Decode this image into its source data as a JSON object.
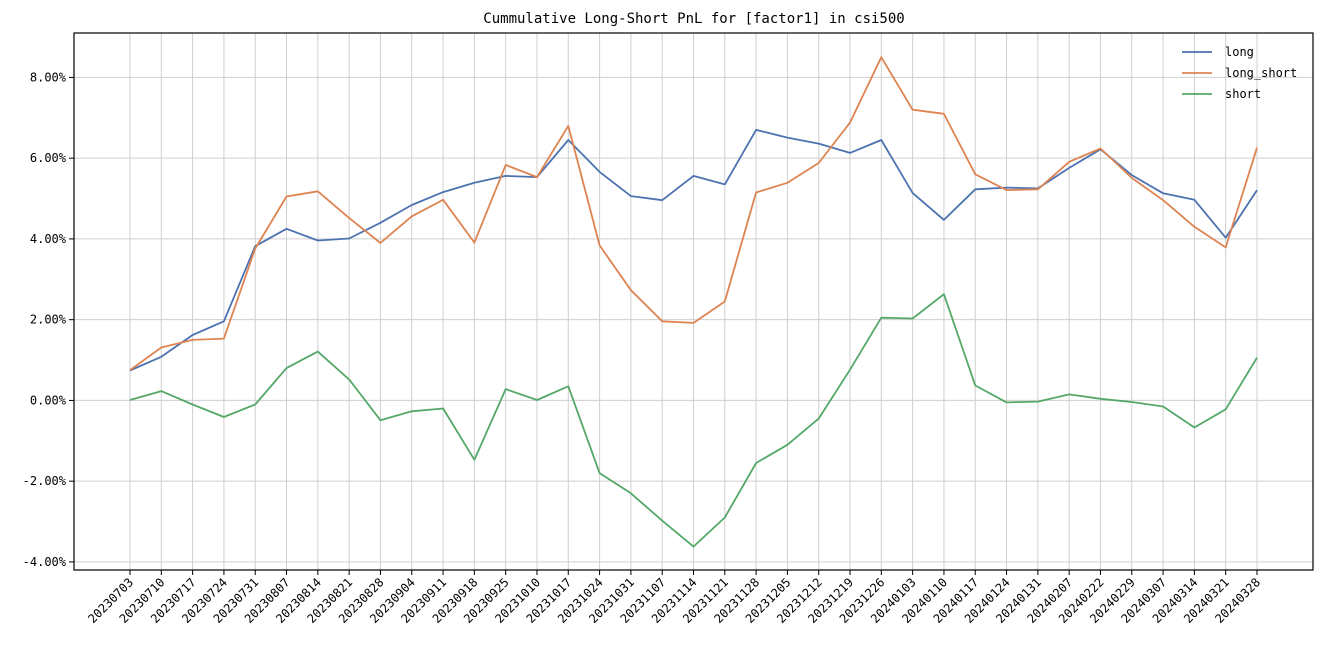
{
  "chart_data": {
    "type": "line",
    "title": "Cummulative Long-Short PnL for [factor1] in csi500",
    "xlabel": "",
    "ylabel": "",
    "ylim": [
      -4.2,
      9.1
    ],
    "yticks": [
      -4,
      -2,
      0,
      2,
      4,
      6,
      8
    ],
    "ytick_labels": [
      "-4.00%",
      "-2.00%",
      "0.00%",
      "2.00%",
      "4.00%",
      "6.00%",
      "8.00%"
    ],
    "grid": true,
    "legend_position": "top-right",
    "categories": [
      "20230703",
      "20230710",
      "20230717",
      "20230724",
      "20230731",
      "20230807",
      "20230814",
      "20230821",
      "20230828",
      "20230904",
      "20230911",
      "20230918",
      "20230925",
      "20231010",
      "20231017",
      "20231024",
      "20231031",
      "20231107",
      "20231114",
      "20231121",
      "20231128",
      "20231205",
      "20231212",
      "20231219",
      "20231226",
      "20240103",
      "20240110",
      "20240117",
      "20240124",
      "20240131",
      "20240207",
      "20240222",
      "20240229",
      "20240307",
      "20240314",
      "20240321",
      "20240328"
    ],
    "series": [
      {
        "name": "long",
        "color": "#4c72b0",
        "values": [
          0.74,
          1.08,
          1.62,
          1.96,
          3.82,
          4.25,
          3.96,
          4.01,
          4.4,
          4.84,
          5.16,
          5.39,
          5.56,
          5.53,
          6.45,
          5.66,
          5.06,
          4.96,
          5.56,
          5.35,
          6.7,
          6.51,
          6.36,
          6.13,
          6.45,
          5.14,
          4.47,
          5.23,
          5.27,
          5.25,
          5.76,
          6.22,
          5.58,
          5.13,
          4.97,
          4.03,
          5.21
        ]
      },
      {
        "name": "long_short",
        "color": "#dd8452",
        "values": [
          0.75,
          1.31,
          1.5,
          1.53,
          3.76,
          5.05,
          5.18,
          4.52,
          3.9,
          4.56,
          4.97,
          3.91,
          5.83,
          5.53,
          6.8,
          3.84,
          2.73,
          1.96,
          1.92,
          2.45,
          5.15,
          5.39,
          5.88,
          6.88,
          8.5,
          7.2,
          7.1,
          5.6,
          5.21,
          5.23,
          5.91,
          6.24,
          5.51,
          4.96,
          4.3,
          3.79,
          6.26
        ]
      },
      {
        "name": "short",
        "color": "#55a868",
        "values": [
          0.01,
          0.23,
          -0.1,
          -0.41,
          -0.1,
          0.8,
          1.21,
          0.52,
          -0.49,
          -0.27,
          -0.2,
          -1.47,
          0.28,
          0.01,
          0.35,
          -1.8,
          -2.3,
          -2.98,
          -3.62,
          -2.9,
          -1.55,
          -1.1,
          -0.45,
          0.76,
          2.05,
          2.03,
          2.63,
          0.37,
          -0.05,
          -0.03,
          0.15,
          0.04,
          -0.04,
          -0.15,
          -0.67,
          -0.22,
          1.06
        ]
      }
    ]
  }
}
